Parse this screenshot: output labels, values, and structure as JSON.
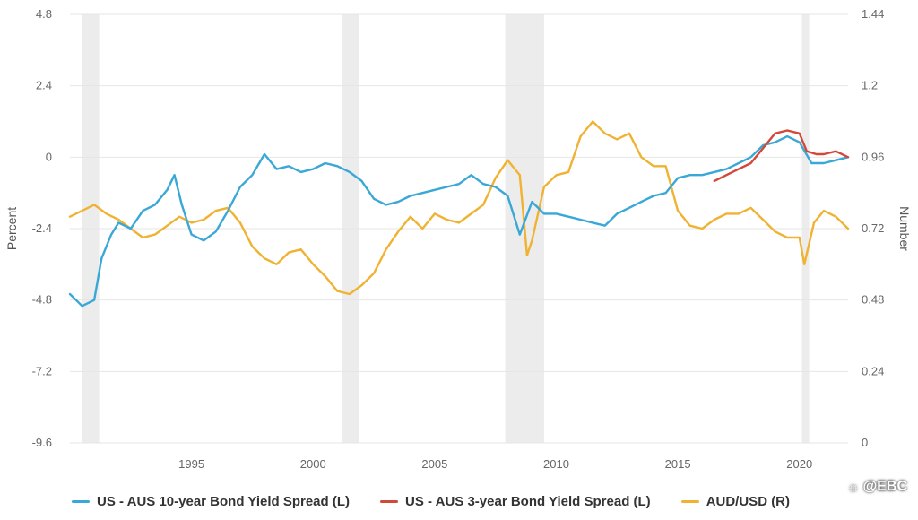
{
  "chart_data": {
    "type": "line",
    "title": "",
    "xlabel": "",
    "ylabel_left": "Percent",
    "ylabel_right": "Number",
    "x_range": [
      1990.0,
      2022.0
    ],
    "x_ticks": [
      "1995",
      "2000",
      "2005",
      "2010",
      "2015",
      "2020"
    ],
    "y_left_range": [
      -9.6,
      4.8
    ],
    "y_left_ticks": [
      "4.8",
      "2.4",
      "0",
      "-2.4",
      "-4.8",
      "-7.2",
      "-9.6"
    ],
    "y_right_range": [
      0,
      1.44
    ],
    "y_right_ticks": [
      "1.44",
      "1.2",
      "0.96",
      "0.72",
      "0.48",
      "0.24",
      "0"
    ],
    "grid": true,
    "legend_position": "bottom",
    "recessions": [
      [
        1990.5,
        1991.2
      ],
      [
        2001.2,
        2001.9
      ],
      [
        2007.9,
        2009.5
      ],
      [
        2020.1,
        2020.4
      ]
    ],
    "series": [
      {
        "name": "US - AUS 10-year Bond Yield Spread (L)",
        "axis": "left",
        "color": "#3aa8d6",
        "x": [
          1990.0,
          1990.5,
          1991.0,
          1991.3,
          1991.7,
          1992.0,
          1992.5,
          1993.0,
          1993.5,
          1994.0,
          1994.3,
          1994.6,
          1995.0,
          1995.5,
          1996.0,
          1996.5,
          1997.0,
          1997.5,
          1998.0,
          1998.5,
          1999.0,
          1999.5,
          2000.0,
          2000.5,
          2001.0,
          2001.5,
          2002.0,
          2002.5,
          2003.0,
          2003.5,
          2004.0,
          2004.5,
          2005.0,
          2005.5,
          2006.0,
          2006.5,
          2007.0,
          2007.5,
          2008.0,
          2008.5,
          2009.0,
          2009.5,
          2010.0,
          2010.5,
          2011.0,
          2011.5,
          2012.0,
          2012.5,
          2013.0,
          2013.5,
          2014.0,
          2014.5,
          2015.0,
          2015.5,
          2016.0,
          2016.5,
          2017.0,
          2017.5,
          2018.0,
          2018.5,
          2019.0,
          2019.5,
          2020.0,
          2020.5,
          2021.0,
          2021.5,
          2022.0
        ],
        "values": [
          -4.6,
          -5.0,
          -4.8,
          -3.4,
          -2.6,
          -2.2,
          -2.4,
          -1.8,
          -1.6,
          -1.1,
          -0.6,
          -1.6,
          -2.6,
          -2.8,
          -2.5,
          -1.8,
          -1.0,
          -0.6,
          0.1,
          -0.4,
          -0.3,
          -0.5,
          -0.4,
          -0.2,
          -0.3,
          -0.5,
          -0.8,
          -1.4,
          -1.6,
          -1.5,
          -1.3,
          -1.2,
          -1.1,
          -1.0,
          -0.9,
          -0.6,
          -0.9,
          -1.0,
          -1.3,
          -2.6,
          -1.5,
          -1.9,
          -1.9,
          -2.0,
          -2.1,
          -2.2,
          -2.3,
          -1.9,
          -1.7,
          -1.5,
          -1.3,
          -1.2,
          -0.7,
          -0.6,
          -0.6,
          -0.5,
          -0.4,
          -0.2,
          0.0,
          0.4,
          0.5,
          0.7,
          0.5,
          -0.2,
          -0.2,
          -0.1,
          0.0
        ]
      },
      {
        "name": "US - AUS 3-year Bond Yield Spread (L)",
        "axis": "left",
        "color": "#d4483a",
        "x": [
          2016.5,
          2017.0,
          2017.5,
          2018.0,
          2018.5,
          2019.0,
          2019.5,
          2020.0,
          2020.3,
          2020.7,
          2021.0,
          2021.5,
          2022.0
        ],
        "values": [
          -0.8,
          -0.6,
          -0.4,
          -0.2,
          0.3,
          0.8,
          0.9,
          0.8,
          0.2,
          0.1,
          0.1,
          0.2,
          0.0
        ]
      },
      {
        "name": "AUD/USD (R)",
        "axis": "right",
        "color": "#f0b232",
        "x": [
          1990.0,
          1990.5,
          1991.0,
          1991.5,
          1992.0,
          1992.5,
          1993.0,
          1993.5,
          1994.0,
          1994.5,
          1995.0,
          1995.5,
          1996.0,
          1996.5,
          1997.0,
          1997.5,
          1998.0,
          1998.5,
          1999.0,
          1999.5,
          2000.0,
          2000.5,
          2001.0,
          2001.5,
          2002.0,
          2002.5,
          2003.0,
          2003.5,
          2004.0,
          2004.5,
          2005.0,
          2005.5,
          2006.0,
          2006.5,
          2007.0,
          2007.5,
          2008.0,
          2008.5,
          2008.8,
          2009.0,
          2009.5,
          2010.0,
          2010.5,
          2011.0,
          2011.5,
          2012.0,
          2012.5,
          2013.0,
          2013.5,
          2014.0,
          2014.5,
          2015.0,
          2015.5,
          2016.0,
          2016.5,
          2017.0,
          2017.5,
          2018.0,
          2018.5,
          2019.0,
          2019.5,
          2020.0,
          2020.2,
          2020.6,
          2021.0,
          2021.5,
          2022.0
        ],
        "values": [
          0.76,
          0.78,
          0.8,
          0.77,
          0.75,
          0.72,
          0.69,
          0.7,
          0.73,
          0.76,
          0.74,
          0.75,
          0.78,
          0.79,
          0.74,
          0.66,
          0.62,
          0.6,
          0.64,
          0.65,
          0.6,
          0.56,
          0.51,
          0.5,
          0.53,
          0.57,
          0.65,
          0.71,
          0.76,
          0.72,
          0.77,
          0.75,
          0.74,
          0.77,
          0.8,
          0.89,
          0.95,
          0.9,
          0.63,
          0.68,
          0.86,
          0.9,
          0.91,
          1.03,
          1.08,
          1.04,
          1.02,
          1.04,
          0.96,
          0.93,
          0.93,
          0.78,
          0.73,
          0.72,
          0.75,
          0.77,
          0.77,
          0.79,
          0.75,
          0.71,
          0.69,
          0.69,
          0.6,
          0.74,
          0.78,
          0.76,
          0.72
        ]
      }
    ]
  },
  "legend": [
    {
      "label": "US - AUS 10-year Bond Yield Spread (L)",
      "color": "#3aa8d6"
    },
    {
      "label": "US - AUS 3-year Bond Yield Spread (L)",
      "color": "#d4483a"
    },
    {
      "label": "AUD/USD (R)",
      "color": "#f0b232"
    }
  ],
  "watermark": {
    "text": "@EBC",
    "icon": "weibo-icon"
  }
}
